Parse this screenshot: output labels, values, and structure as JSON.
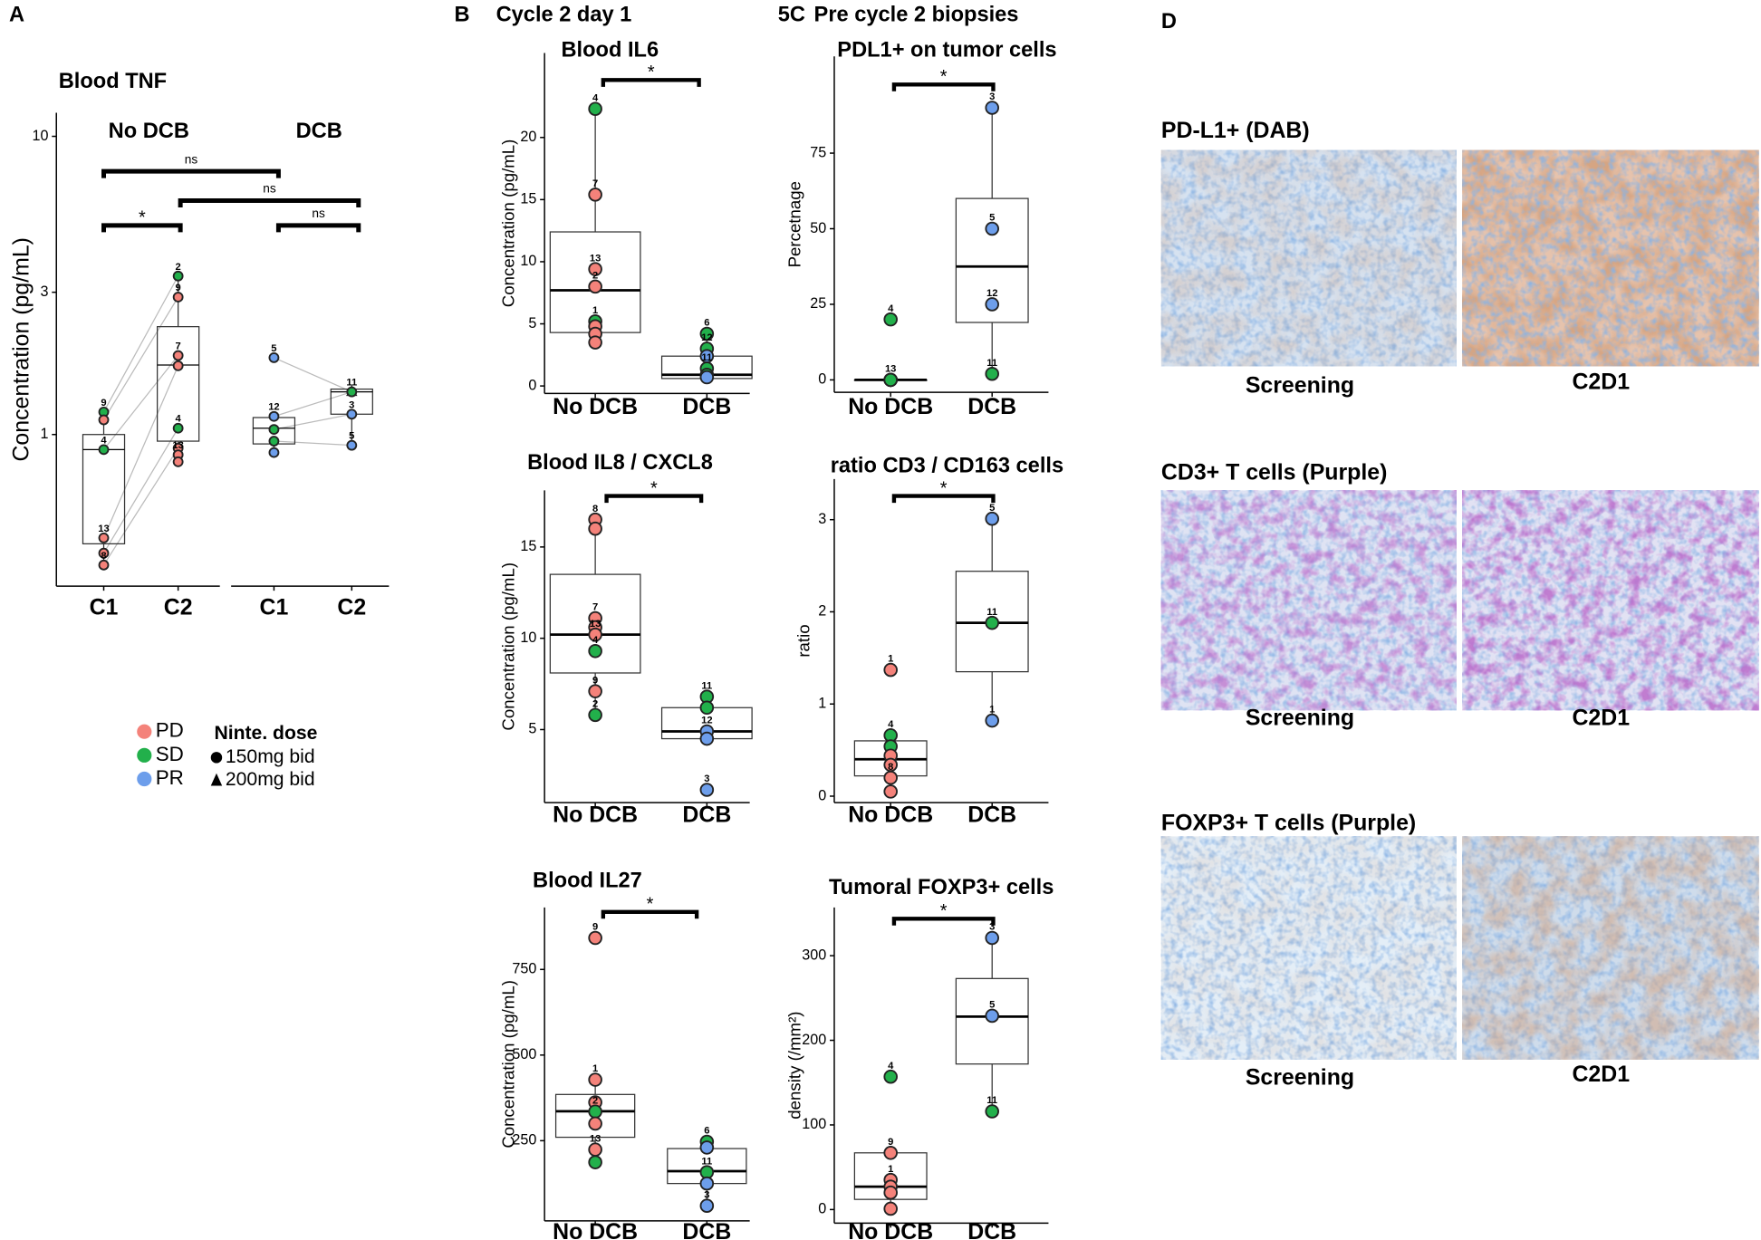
{
  "panels": {
    "a": "A",
    "b": "B",
    "b_title": "Cycle 2 day 1",
    "c": "5C",
    "c_title": "Pre cycle 2 biopsies",
    "d": "D"
  },
  "chart_data": [
    {
      "type": "box",
      "title": "Blood TNF",
      "ylabel": "Concentration (pg/mL)",
      "log_y": true,
      "paired": true,
      "facets": [
        "No DCB",
        "DCB"
      ],
      "categories": [
        "C1",
        "C2",
        "C1",
        "C2"
      ],
      "ylim": [
        0.31,
        12
      ],
      "yticks": [
        1,
        3,
        10
      ],
      "boxes": [
        {
          "whisker_low": 0.365,
          "q1": 0.43,
          "median": 0.89,
          "q3": 1.0,
          "whisker_high": 1.19
        },
        {
          "whisker_low": 0.81,
          "q1": 0.95,
          "median": 1.71,
          "q3": 2.3,
          "whisker_high": 3.4
        },
        {
          "whisker_low": 0.87,
          "q1": 0.93,
          "median": 1.05,
          "q3": 1.14,
          "whisker_high": 1.15
        },
        {
          "whisker_low": 0.92,
          "q1": 1.17,
          "median": 1.39,
          "q3": 1.42,
          "whisker_high": 1.42
        }
      ],
      "points": [
        {
          "values": [
            1.19,
            1.12,
            0.89,
            0.45,
            0.4,
            0.365
          ],
          "labels": [
            "9",
            null,
            "4",
            "13",
            null,
            "8"
          ],
          "colors": [
            "#22b04b",
            "#f4827a",
            "#22b04b",
            "#f4827a",
            "#f4827a",
            "#f4827a"
          ]
        },
        {
          "values": [
            3.4,
            2.89,
            1.84,
            1.7,
            1.05,
            0.9,
            0.855,
            0.81
          ],
          "labels": [
            "2",
            "9",
            "7",
            null,
            "4",
            null,
            "13",
            null
          ],
          "colors": [
            "#22b04b",
            "#f4827a",
            "#f4827a",
            "#f4827a",
            "#22b04b",
            "#f4827a",
            "#f4827a",
            "#f4827a"
          ]
        },
        {
          "values": [
            1.81,
            1.15,
            1.04,
            0.95,
            0.87
          ],
          "labels": [
            "5",
            "12",
            null,
            null,
            null
          ],
          "colors": [
            "#6d9eeb",
            "#6d9eeb",
            "#22b04b",
            "#22b04b",
            "#6d9eeb"
          ]
        },
        {
          "values": [
            1.39,
            1.39,
            1.17,
            0.92
          ],
          "labels": [
            "11",
            null,
            "3",
            "5"
          ],
          "colors": [
            "#6d9eeb",
            "#22b04b",
            "#6d9eeb",
            "#6d9eeb"
          ],
          "shapes": [
            "triangle",
            "circle",
            "circle",
            "circle"
          ]
        }
      ],
      "annotations": [
        "ns",
        "ns",
        "*",
        "ns"
      ],
      "legend": [
        {
          "name": "PD",
          "color": "#f4827a"
        },
        {
          "name": "SD",
          "color": "#22b04b"
        },
        {
          "name": "PR",
          "color": "#6d9eeb"
        }
      ],
      "shape_legend": {
        "title": "Ninte. dose",
        "entries": [
          {
            "name": "150mg bid",
            "shape": "circle"
          },
          {
            "name": "200mg bid",
            "shape": "triangle"
          }
        ]
      }
    },
    {
      "type": "box",
      "title": "Blood IL6",
      "ylabel": "Concentration (pg/mL)",
      "categories": [
        "No DCB",
        "DCB"
      ],
      "ylim": [
        -0.6,
        26.8
      ],
      "yticks": [
        0,
        5,
        10,
        15,
        20
      ],
      "boxes": [
        {
          "whisker_low": 3.5,
          "q1": 4.3,
          "median": 7.7,
          "q3": 12.4,
          "whisker_high": 22.3
        },
        {
          "whisker_low": 0.6,
          "q1": 0.6,
          "median": 0.9,
          "q3": 2.4,
          "whisker_high": 4.2
        }
      ],
      "points": [
        {
          "values": [
            22.3,
            15.4,
            9.4,
            8.0,
            5.2,
            4.8,
            4.2,
            3.5
          ],
          "labels": [
            "4",
            "7",
            "13",
            "2",
            "1",
            null,
            null,
            null
          ],
          "colors": [
            "#22b04b",
            "#f4827a",
            "#f4827a",
            "#f4827a",
            "#22b04b",
            "#f4827a",
            "#f4827a",
            "#f4827a"
          ]
        },
        {
          "values": [
            4.2,
            3.0,
            2.4,
            1.4,
            0.9,
            0.7
          ],
          "labels": [
            "6",
            "12",
            null,
            "11",
            null,
            null
          ],
          "colors": [
            "#22b04b",
            "#22b04b",
            "#6d9eeb",
            "#22b04b",
            "#22b04b",
            "#6d9eeb"
          ]
        }
      ],
      "annotations": [
        "*"
      ]
    },
    {
      "type": "box",
      "title": "Blood IL8 / CXCL8",
      "ylabel": "Concentration (pg/mL)",
      "categories": [
        "No DCB",
        "DCB"
      ],
      "ylim": [
        1.0,
        18.1
      ],
      "yticks": [
        5,
        10,
        15
      ],
      "boxes": [
        {
          "whisker_low": 5.8,
          "q1": 8.1,
          "median": 10.2,
          "q3": 13.5,
          "whisker_high": 16.5
        },
        {
          "whisker_low": 4.5,
          "q1": 4.5,
          "median": 4.9,
          "q3": 6.2,
          "whisker_high": 6.8
        }
      ],
      "points": [
        {
          "values": [
            16.5,
            16.0,
            11.1,
            10.6,
            10.2,
            9.3,
            7.1,
            5.8
          ],
          "labels": [
            "8",
            null,
            "7",
            null,
            "13",
            "4",
            "9",
            "2"
          ],
          "colors": [
            "#f4827a",
            "#f4827a",
            "#f4827a",
            "#f4827a",
            "#f4827a",
            "#22b04b",
            "#f4827a",
            "#22b04b"
          ]
        },
        {
          "values": [
            6.8,
            6.2,
            4.9,
            4.5,
            1.7
          ],
          "labels": [
            "11",
            null,
            "12",
            null,
            "3"
          ],
          "colors": [
            "#22b04b",
            "#22b04b",
            "#6d9eeb",
            "#6d9eeb",
            "#6d9eeb"
          ]
        }
      ],
      "annotations": [
        "*"
      ]
    },
    {
      "type": "box",
      "title": "Blood IL27",
      "ylabel": "Concentration (pg/mL)",
      "categories": [
        "No DCB",
        "DCB"
      ],
      "ylim": [
        16,
        931
      ],
      "yticks": [
        250,
        500,
        750
      ],
      "boxes": [
        {
          "whisker_low": 187,
          "q1": 260,
          "median": 336,
          "q3": 385,
          "whisker_high": 428
        },
        {
          "whisker_low": 60,
          "q1": 125,
          "median": 161,
          "q3": 227,
          "whisker_high": 247
        }
      ],
      "points": [
        {
          "values": [
            842,
            428,
            362,
            335,
            300,
            224,
            187
          ],
          "labels": [
            "9",
            "1",
            null,
            "2",
            null,
            "13",
            null
          ],
          "colors": [
            "#f4827a",
            "#f4827a",
            "#f4827a",
            "#22b04b",
            "#f4827a",
            "#f4827a",
            "#22b04b"
          ]
        },
        {
          "values": [
            247,
            230,
            158,
            125,
            60
          ],
          "labels": [
            "6",
            null,
            "11",
            null,
            "3"
          ],
          "colors": [
            "#22b04b",
            "#6d9eeb",
            "#22b04b",
            "#6d9eeb",
            "#6d9eeb"
          ]
        }
      ],
      "annotations": [
        "*"
      ]
    },
    {
      "type": "box",
      "title": "PDL1+ on tumor cells",
      "ylabel": "Percetnage",
      "categories": [
        "No DCB",
        "DCB"
      ],
      "ylim": [
        -4.1,
        107
      ],
      "yticks": [
        0,
        25,
        50,
        75
      ],
      "boxes": [
        {
          "whisker_low": 0,
          "q1": 0,
          "median": 0,
          "q3": 0,
          "whisker_high": 0
        },
        {
          "whisker_low": 2,
          "q1": 19,
          "median": 37.5,
          "q3": 60,
          "whisker_high": 90
        }
      ],
      "points": [
        {
          "values": [
            20,
            0,
            0,
            0,
            0
          ],
          "labels": [
            "4",
            "13",
            null,
            null,
            null
          ],
          "colors": [
            "#22b04b",
            "#f4827a",
            "#f4827a",
            "#f4827a",
            "#22b04b"
          ]
        },
        {
          "values": [
            90,
            50,
            25,
            2
          ],
          "labels": [
            "3",
            "5",
            "12",
            "11"
          ],
          "colors": [
            "#6d9eeb",
            "#6d9eeb",
            "#6d9eeb",
            "#22b04b"
          ]
        }
      ],
      "annotations": [
        "*"
      ]
    },
    {
      "type": "box",
      "title": "ratio CD3 / CD163 cells",
      "ylabel": "ratio",
      "categories": [
        "No DCB",
        "DCB"
      ],
      "ylim": [
        -0.07,
        3.44
      ],
      "yticks": [
        0,
        1,
        2,
        3
      ],
      "boxes": [
        {
          "whisker_low": 0.05,
          "q1": 0.22,
          "median": 0.4,
          "q3": 0.6,
          "whisker_high": 0.66
        },
        {
          "whisker_low": 0.82,
          "q1": 1.35,
          "median": 1.88,
          "q3": 2.44,
          "whisker_high": 3.01
        }
      ],
      "points": [
        {
          "values": [
            1.37,
            0.66,
            0.54,
            0.44,
            0.34,
            0.2,
            0.05
          ],
          "labels": [
            "1",
            "4",
            null,
            null,
            null,
            "8",
            null
          ],
          "colors": [
            "#f4827a",
            "#22b04b",
            "#22b04b",
            "#f4827a",
            "#f4827a",
            "#f4827a",
            "#f4827a"
          ]
        },
        {
          "values": [
            3.01,
            1.88,
            0.82
          ],
          "labels": [
            "5",
            "11",
            "1"
          ],
          "colors": [
            "#6d9eeb",
            "#22b04b",
            "#6d9eeb"
          ]
        }
      ],
      "annotations": [
        "*"
      ]
    },
    {
      "type": "box",
      "title": "Tumoral FOXP3+ cells",
      "ylabel": "density (/mm²)",
      "categories": [
        "No DCB",
        "DCB"
      ],
      "ylim": [
        -16,
        357
      ],
      "yticks": [
        0,
        100,
        200,
        300
      ],
      "boxes": [
        {
          "whisker_low": 1,
          "q1": 12,
          "median": 27,
          "q3": 67,
          "whisker_high": 67
        },
        {
          "whisker_low": 116,
          "q1": 172,
          "median": 228,
          "q3": 273,
          "whisker_high": 321
        }
      ],
      "points": [
        {
          "values": [
            157,
            67,
            35,
            27,
            20,
            1
          ],
          "labels": [
            "4",
            "9",
            "1",
            null,
            null,
            null
          ],
          "colors": [
            "#22b04b",
            "#f4827a",
            "#f4827a",
            "#f4827a",
            "#f4827a",
            "#f4827a"
          ]
        },
        {
          "values": [
            321,
            229,
            116
          ],
          "labels": [
            "3",
            "5",
            "11"
          ],
          "colors": [
            "#6d9eeb",
            "#6d9eeb",
            "#22b04b"
          ]
        }
      ],
      "annotations": [
        "*"
      ]
    }
  ],
  "images": [
    {
      "title": "PD-L1+ (DAB)",
      "captions": [
        "Screening",
        "C2D1"
      ]
    },
    {
      "title": "CD3+ T cells (Purple)",
      "captions": [
        "Screening",
        "C2D1"
      ]
    },
    {
      "title": "FOXP3+ T cells (Purple)",
      "captions": [
        "Screening",
        "C2D1"
      ]
    }
  ]
}
